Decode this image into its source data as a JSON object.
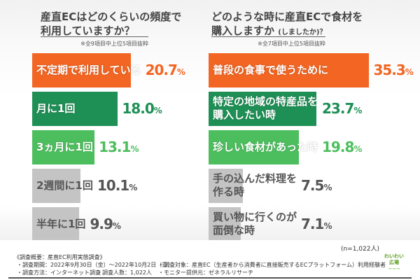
{
  "chart_data": [
    {
      "type": "bar",
      "orientation": "horizontal",
      "title": "産直ECはどのくらいの頻度で利用していますか？",
      "note": "※全9項目中上位5項目抜粋",
      "unit": "%",
      "categories": [
        "不定期で利用している",
        "月に1回",
        "3ヵ月に1回",
        "2週間に1回",
        "半年に1回"
      ],
      "values": [
        20.7,
        18.0,
        13.1,
        10.1,
        9.9
      ],
      "colors": [
        "#F26522",
        "#1E8F55",
        "#4DBE5E",
        "#C4C4C4",
        "#C4C4C4"
      ],
      "value_colors": [
        "#F26522",
        "#1E8F55",
        "#4DBE5E",
        "#555555",
        "#555555"
      ]
    },
    {
      "type": "bar",
      "orientation": "horizontal",
      "title_line1": "どのような時に産直ECで食材を",
      "title_line2": "購入しますか",
      "title_suffix": "(しましたか)？",
      "note": "※全7項目中上位5項目抜粋",
      "unit": "%",
      "categories": [
        "普段の食事で使うために",
        "特定の地域の特産品を\n購入したい時",
        "珍しい食材があった時",
        "手の込んだ料理を\n作る時",
        "買い物に行くのが\n面倒な時"
      ],
      "values": [
        35.3,
        23.7,
        19.8,
        7.5,
        7.1
      ],
      "colors": [
        "#F26522",
        "#1E8F55",
        "#4DBE5E",
        "#C4C4C4",
        "#C4C4C4"
      ],
      "value_colors": [
        "#F26522",
        "#1E8F55",
        "#4DBE5E",
        "#555555",
        "#555555"
      ]
    }
  ],
  "left_title_line1": "産直ECはどのくらいの頻度で",
  "left_title_line2": "利用していますか？",
  "sample": "(n=1,022人)",
  "footer": {
    "heading": "《調査概要：産直EC利用実態調査》",
    "period": "・調査期間：2022年9月30日（金）～2022年10月2日（日）",
    "target": "・調査対象：産直EC（生産者から消費者に直接販売するECプラットフォーム）利用経験者",
    "method": "・調査方法：インターネット調査",
    "count": "・調査人数：1,022人",
    "provider": "・モニター提供元：ゼネラルリサーチ"
  },
  "logo_text": "わいわい広場"
}
